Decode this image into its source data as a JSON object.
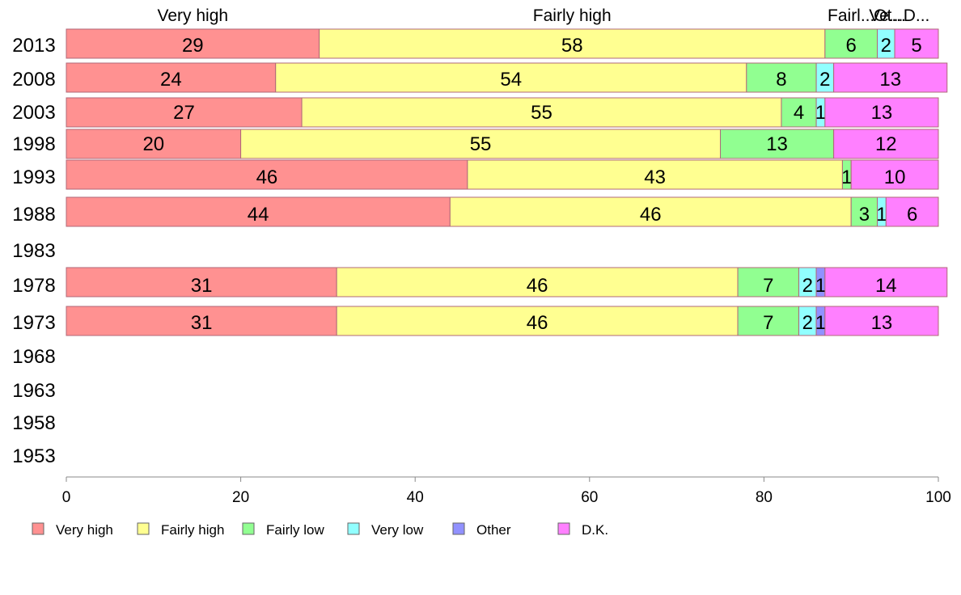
{
  "chart_data": {
    "type": "bar",
    "orientation": "horizontal",
    "stacked": true,
    "title": "",
    "xlabel": "",
    "ylabel": "",
    "xlim": [
      0,
      100
    ],
    "x_ticks": [
      0,
      20,
      40,
      60,
      80,
      100
    ],
    "grid": false,
    "legend_position": "bottom",
    "categories": [
      "2013",
      "2008",
      "2003",
      "1998",
      "1993",
      "1988",
      "1983",
      "1978",
      "1973",
      "1968",
      "1963",
      "1958",
      "1953"
    ],
    "series": [
      {
        "name": "Very high",
        "color": "#ff9191",
        "values": [
          29,
          24,
          27,
          20,
          46,
          44,
          null,
          31,
          31,
          null,
          null,
          null,
          null
        ]
      },
      {
        "name": "Fairly high",
        "color": "#ffff91",
        "values": [
          58,
          54,
          55,
          55,
          43,
          46,
          null,
          46,
          46,
          null,
          null,
          null,
          null
        ]
      },
      {
        "name": "Fairly low",
        "color": "#91ff91",
        "values": [
          6,
          8,
          4,
          13,
          1,
          3,
          null,
          7,
          7,
          null,
          null,
          null,
          null
        ]
      },
      {
        "name": "Very low",
        "color": "#91ffff",
        "values": [
          2,
          2,
          1,
          0,
          0,
          1,
          null,
          2,
          2,
          null,
          null,
          null,
          null
        ]
      },
      {
        "name": "Other",
        "color": "#9191ff",
        "values": [
          0,
          0,
          0,
          0,
          0,
          0,
          null,
          1,
          1,
          null,
          null,
          null,
          null
        ]
      },
      {
        "name": "D.K.",
        "color": "#ff80ff",
        "values": [
          5,
          13,
          13,
          12,
          10,
          6,
          null,
          14,
          13,
          null,
          null,
          null,
          null
        ]
      }
    ],
    "top_labels": [
      "Very high",
      "Fairly high",
      "Fairl...",
      "Ve...",
      "Ot...",
      "D..."
    ]
  }
}
